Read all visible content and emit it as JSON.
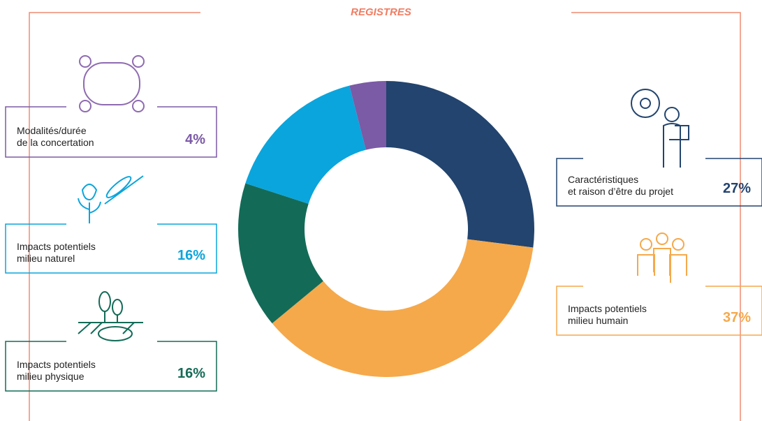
{
  "chart_data": {
    "type": "pie",
    "title": "REGISTRES",
    "categories": [
      "Caractéristiques\net raison d’être du projet",
      "Impacts potentiels\nmilieu humain",
      "Impacts potentiels\nmilieu physique",
      "Impacts potentiels\nmilieu naturel",
      "Modalités/durée\nde la concertation"
    ],
    "values": [
      27,
      37,
      16,
      16,
      4
    ],
    "value_labels": [
      "27%",
      "37%",
      "16%",
      "16%",
      "4%"
    ],
    "colors": [
      "#22446e",
      "#f5a94b",
      "#136b57",
      "#0aa5dc",
      "#7b5aa6"
    ],
    "donut": true
  }
}
